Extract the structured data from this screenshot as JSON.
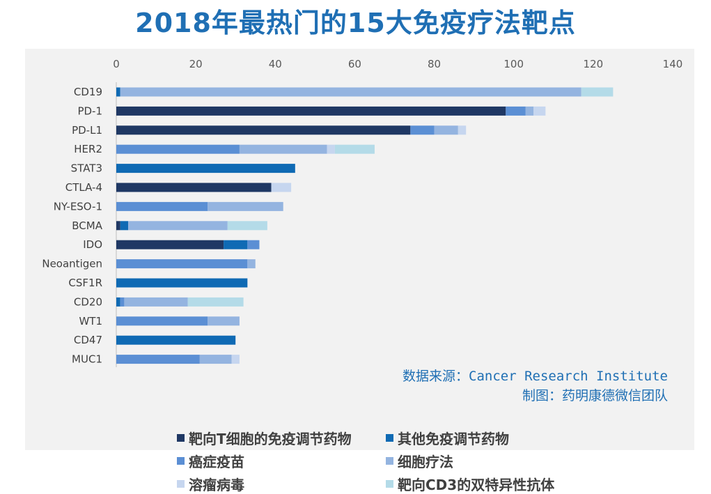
{
  "title": "2018年最热门的15大免疫疗法靶点",
  "source": {
    "line1": "数据来源：Cancer Research Institute",
    "line2": "制图：药明康德微信团队"
  },
  "chart_data": {
    "type": "bar",
    "orientation": "horizontal",
    "stacked": true,
    "categories": [
      "CD19",
      "PD-1",
      "PD-L1",
      "HER2",
      "STAT3",
      "CTLA-4",
      "NY-ESO-1",
      "BCMA",
      "IDO",
      "Neoantigen",
      "CSF1R",
      "CD20",
      "WT1",
      "CD47",
      "MUC1"
    ],
    "xlim": [
      0,
      140
    ],
    "xticks": [
      0,
      20,
      40,
      60,
      80,
      100,
      120,
      140
    ],
    "axis_position": "top",
    "grid": false,
    "legend_position": "bottom",
    "series": [
      {
        "name": "靶向T细胞的免疫调节药物",
        "color": "#1f3864",
        "values": [
          0,
          98,
          74,
          0,
          0,
          39,
          0,
          1,
          27,
          0,
          0,
          0,
          0,
          0,
          0
        ]
      },
      {
        "name": "其他免疫调节药物",
        "color": "#0f6ab4",
        "values": [
          1,
          0,
          0,
          0,
          45,
          0,
          0,
          2,
          6,
          0,
          33,
          1,
          0,
          30,
          0
        ]
      },
      {
        "name": "癌症疫苗",
        "color": "#5b8fd4",
        "values": [
          0,
          5,
          6,
          31,
          0,
          0,
          23,
          0,
          3,
          33,
          0,
          1,
          23,
          0,
          21
        ]
      },
      {
        "name": "细胞疗法",
        "color": "#94b4e0",
        "values": [
          116,
          2,
          6,
          22,
          0,
          0,
          19,
          25,
          0,
          2,
          0,
          16,
          8,
          0,
          8
        ]
      },
      {
        "name": "溶瘤病毒",
        "color": "#c6d6ef",
        "values": [
          0,
          3,
          2,
          2,
          0,
          5,
          0,
          0,
          0,
          0,
          0,
          0,
          0,
          0,
          2
        ]
      },
      {
        "name": "靶向CD3的双特异性抗体",
        "color": "#b4dbe8",
        "values": [
          8,
          0,
          0,
          10,
          0,
          0,
          0,
          10,
          0,
          0,
          0,
          14,
          0,
          0,
          0
        ]
      }
    ]
  }
}
